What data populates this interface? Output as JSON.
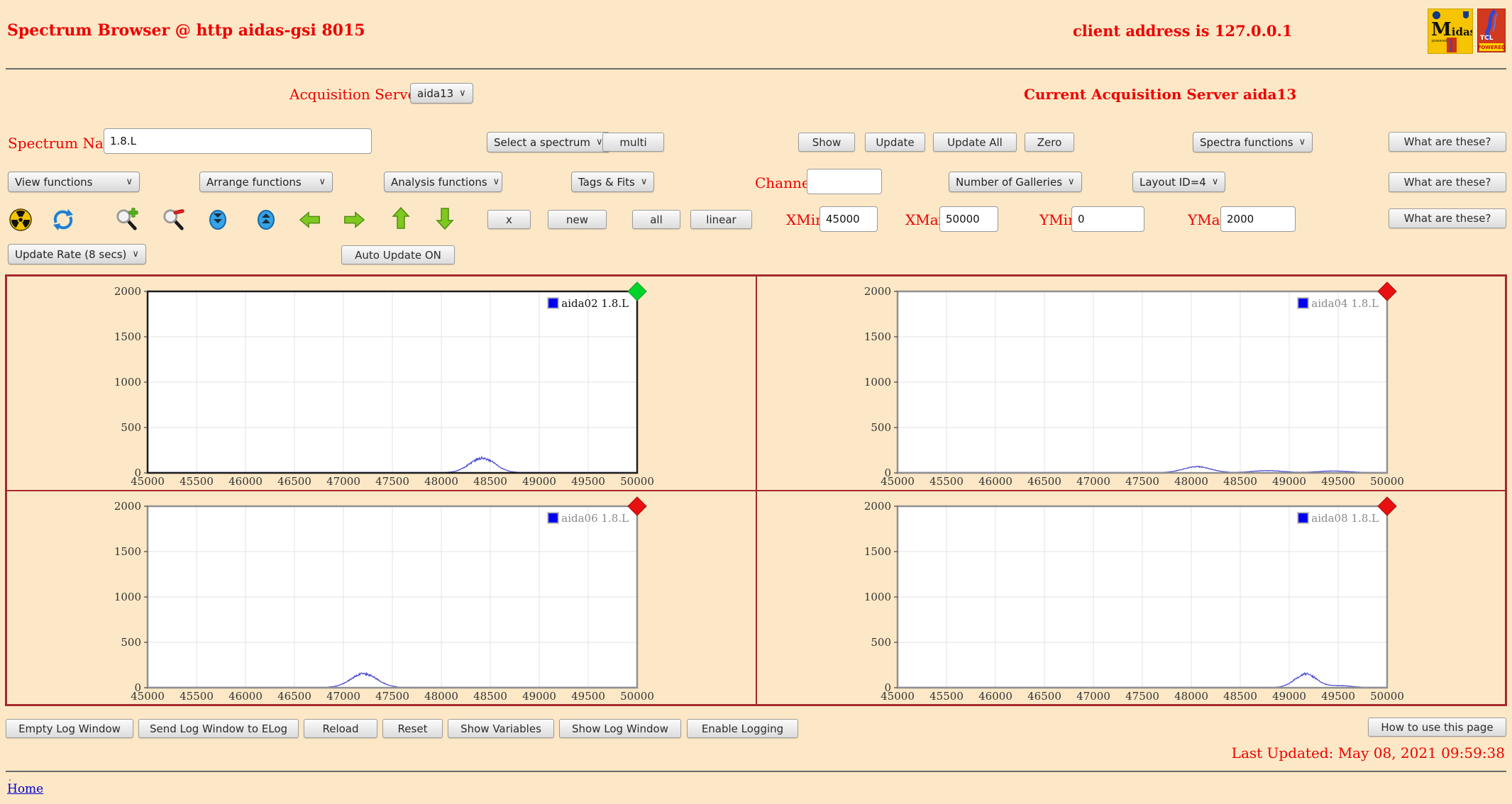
{
  "header": {
    "title": "Spectrum Browser @ http aidas-gsi 8015",
    "client_address": "client address is 127.0.0.1",
    "midas_logo": {
      "name": "Midas",
      "powered_by": "powered by"
    },
    "tcl_logo": {
      "line1": "TCL",
      "line2": "POWERED"
    }
  },
  "server_row": {
    "label": "Acquisition Servers",
    "selected": "aida13",
    "current": "Current Acquisition Server aida13"
  },
  "spectrum_row": {
    "label": "Spectrum Name:",
    "value": "1.8.L",
    "select_spectrum": "Select a spectrum",
    "multi": "multi",
    "show": "Show",
    "update": "Update",
    "update_all": "Update All",
    "zero": "Zero",
    "spectra_functions": "Spectra functions",
    "what": "What are these?"
  },
  "functions_row": {
    "view": "View functions",
    "arrange": "Arrange functions",
    "analysis": "Analysis functions",
    "tags": "Tags & Fits",
    "channel_label": "Channel:",
    "channel_value": "",
    "galleries": "Number of Galleries",
    "layout": "Layout ID=4",
    "what": "What are these?"
  },
  "toolbar_row": {
    "icons": [
      "radiation-icon",
      "refresh-icon",
      "zoom-in-icon",
      "zoom-out-icon",
      "scroll-down-icon",
      "scroll-up-icon",
      "arrow-left-icon",
      "arrow-right-icon",
      "arrow-up-icon",
      "arrow-down-icon"
    ],
    "x": "x",
    "new": "new",
    "all": "all",
    "linear": "linear",
    "xmin_label": "XMin",
    "xmin": "45000",
    "xmax_label": "XMax",
    "xmax": "50000",
    "ymin_label": "YMin",
    "ymin": "0",
    "ymax_label": "YMax",
    "ymax": "2000",
    "what": "What are these?"
  },
  "update_row": {
    "rate": "Update Rate (8 secs)",
    "auto": "Auto Update ON"
  },
  "footer": {
    "buttons": [
      "Empty Log Window",
      "Send Log Window to ELog",
      "Reload",
      "Reset",
      "Show Variables",
      "Show Log Window",
      "Enable Logging"
    ],
    "how": "How to use this page",
    "last_updated": "Last Updated: May 08, 2021 09:59:38",
    "dot": ".",
    "home": "Home"
  },
  "colors": {
    "background": "#fce8c6",
    "accent_red": "#ee0000",
    "panel_border": "#a52a2a",
    "link_blue": "#0000cc",
    "trace_blue": "#4343cf",
    "status_ok_green": "#00d42a",
    "status_alert_red": "#e81010"
  },
  "chart_data": [
    {
      "type": "line",
      "legend": "aida02 1.8.L",
      "gallery": "aida02",
      "spectrum": "1.8.L",
      "active": true,
      "status": "green",
      "status_color": "#00d42a",
      "marker_color": "#0000f0",
      "series_color": "#4343cf",
      "xlim": [
        45000,
        50000
      ],
      "ylim": [
        0,
        2000
      ],
      "xticks": [
        45000,
        45500,
        46000,
        46500,
        47000,
        47500,
        48000,
        48500,
        49000,
        49500,
        50000
      ],
      "yticks": [
        0,
        500,
        1000,
        1500,
        2000
      ],
      "grid": true,
      "legend_position": "top-right",
      "baseline": 3,
      "peaks": [
        {
          "center": 48420,
          "height": 160,
          "sigma": 130
        }
      ]
    },
    {
      "type": "line",
      "legend": "aida04 1.8.L",
      "gallery": "aida04",
      "spectrum": "1.8.L",
      "active": false,
      "status": "red",
      "status_color": "#e81010",
      "marker_color": "#0000f0",
      "series_color": "#4343cf",
      "xlim": [
        45000,
        50000
      ],
      "ylim": [
        0,
        2000
      ],
      "xticks": [
        45000,
        45500,
        46000,
        46500,
        47000,
        47500,
        48000,
        48500,
        49000,
        49500,
        50000
      ],
      "yticks": [
        0,
        500,
        1000,
        1500,
        2000
      ],
      "grid": true,
      "legend_position": "top-right",
      "baseline": 3,
      "peaks": [
        {
          "center": 48060,
          "height": 65,
          "sigma": 140
        },
        {
          "center": 48780,
          "height": 22,
          "sigma": 160
        },
        {
          "center": 49450,
          "height": 18,
          "sigma": 160
        }
      ]
    },
    {
      "type": "line",
      "legend": "aida06 1.8.L",
      "gallery": "aida06",
      "spectrum": "1.8.L",
      "active": false,
      "status": "red",
      "status_color": "#e81010",
      "marker_color": "#0000f0",
      "series_color": "#4343cf",
      "xlim": [
        45000,
        50000
      ],
      "ylim": [
        0,
        2000
      ],
      "xticks": [
        45000,
        45500,
        46000,
        46500,
        47000,
        47500,
        48000,
        48500,
        49000,
        49500,
        50000
      ],
      "yticks": [
        0,
        500,
        1000,
        1500,
        2000
      ],
      "grid": true,
      "legend_position": "top-right",
      "baseline": 3,
      "peaks": [
        {
          "center": 47210,
          "height": 150,
          "sigma": 135
        }
      ]
    },
    {
      "type": "line",
      "legend": "aida08 1.8.L",
      "gallery": "aida08",
      "spectrum": "1.8.L",
      "active": false,
      "status": "red",
      "status_color": "#e81010",
      "marker_color": "#0000f0",
      "series_color": "#4343cf",
      "xlim": [
        45000,
        50000
      ],
      "ylim": [
        0,
        2000
      ],
      "xticks": [
        45000,
        45500,
        46000,
        46500,
        47000,
        47500,
        48000,
        48500,
        49000,
        49500,
        50000
      ],
      "yticks": [
        0,
        500,
        1000,
        1500,
        2000
      ],
      "grid": true,
      "legend_position": "top-right",
      "baseline": 3,
      "peaks": [
        {
          "center": 49170,
          "height": 148,
          "sigma": 110
        },
        {
          "center": 49520,
          "height": 20,
          "sigma": 120
        }
      ]
    }
  ]
}
